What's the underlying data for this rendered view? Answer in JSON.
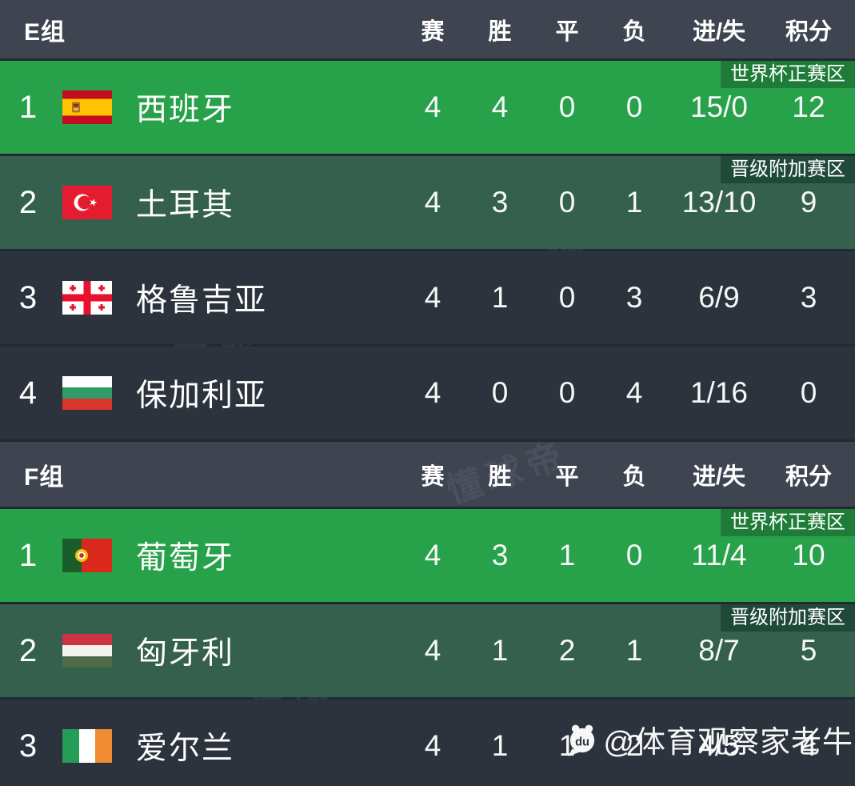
{
  "colors": {
    "header_bg": "#3e4450",
    "row_bg": "#2c333d",
    "first_place_row_bg": "#28a24a",
    "second_place_row_bg": "#35604d",
    "qualified_badge_bg": "#1e7c38",
    "playoff_badge_bg": "#1f4938",
    "divider_bg": "#232931",
    "text": "#ffffff"
  },
  "columns": [
    "赛",
    "胜",
    "平",
    "负",
    "进/失",
    "积分"
  ],
  "badges": {
    "qualified": "世界杯正赛区",
    "playoff": "晋级附加赛区"
  },
  "groups": [
    {
      "label": "E组",
      "teams": [
        {
          "rank": "1",
          "name": "西班牙",
          "flag_icon": "spain-flag-icon",
          "tier": "qualified",
          "badge": "世界杯正赛区",
          "played": "4",
          "won": "4",
          "drawn": "0",
          "lost": "0",
          "goals": "15/0",
          "points": "12"
        },
        {
          "rank": "2",
          "name": "土耳其",
          "flag_icon": "turkey-flag-icon",
          "tier": "playoff",
          "badge": "晋级附加赛区",
          "played": "4",
          "won": "3",
          "drawn": "0",
          "lost": "1",
          "goals": "13/10",
          "points": "9"
        },
        {
          "rank": "3",
          "name": "格鲁吉亚",
          "flag_icon": "georgia-flag-icon",
          "tier": "none",
          "badge": "",
          "played": "4",
          "won": "1",
          "drawn": "0",
          "lost": "3",
          "goals": "6/9",
          "points": "3"
        },
        {
          "rank": "4",
          "name": "保加利亚",
          "flag_icon": "bulgaria-flag-icon",
          "tier": "none",
          "badge": "",
          "played": "4",
          "won": "0",
          "drawn": "0",
          "lost": "4",
          "goals": "1/16",
          "points": "0"
        }
      ]
    },
    {
      "label": "F组",
      "teams": [
        {
          "rank": "1",
          "name": "葡萄牙",
          "flag_icon": "portugal-flag-icon",
          "tier": "qualified",
          "badge": "世界杯正赛区",
          "played": "4",
          "won": "3",
          "drawn": "1",
          "lost": "0",
          "goals": "11/4",
          "points": "10"
        },
        {
          "rank": "2",
          "name": "匈牙利",
          "flag_icon": "hungary-flag-icon",
          "tier": "playoff",
          "badge": "晋级附加赛区",
          "played": "4",
          "won": "1",
          "drawn": "2",
          "lost": "1",
          "goals": "8/7",
          "points": "5"
        },
        {
          "rank": "3",
          "name": "爱尔兰",
          "flag_icon": "ireland-flag-icon",
          "tier": "none",
          "badge": "",
          "played": "4",
          "won": "1",
          "drawn": "1",
          "lost": "2",
          "goals": "4/5",
          "points": "4"
        }
      ]
    }
  ],
  "watermark": {
    "app": "懂球帝",
    "credit": "@体育观察家老牛"
  }
}
